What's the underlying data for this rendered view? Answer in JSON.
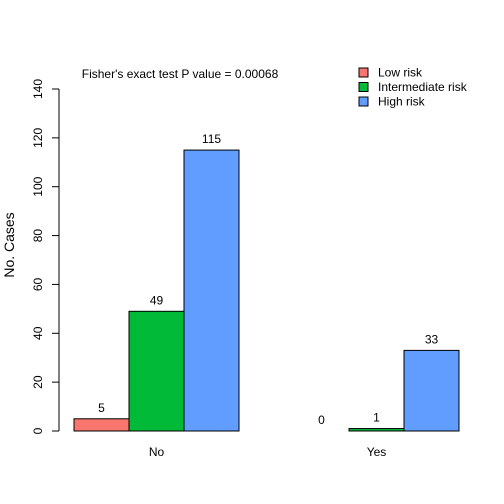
{
  "chart_data": {
    "type": "bar",
    "annotation": "Fisher's exact test P value = 0.00068",
    "ylabel": "No. Cases",
    "xlabel": "",
    "ylim": [
      0,
      140
    ],
    "yticks": [
      "0",
      "20",
      "40",
      "60",
      "80",
      "100",
      "120",
      "140"
    ],
    "categories": [
      "No",
      "Yes"
    ],
    "legend_position": "top-right",
    "series": [
      {
        "name": "Low risk",
        "color": "#f8766d",
        "values": [
          5,
          0
        ]
      },
      {
        "name": "Intermediate risk",
        "color": "#00ba38",
        "values": [
          49,
          1
        ]
      },
      {
        "name": "High risk",
        "color": "#619cff",
        "values": [
          115,
          33
        ]
      }
    ]
  }
}
